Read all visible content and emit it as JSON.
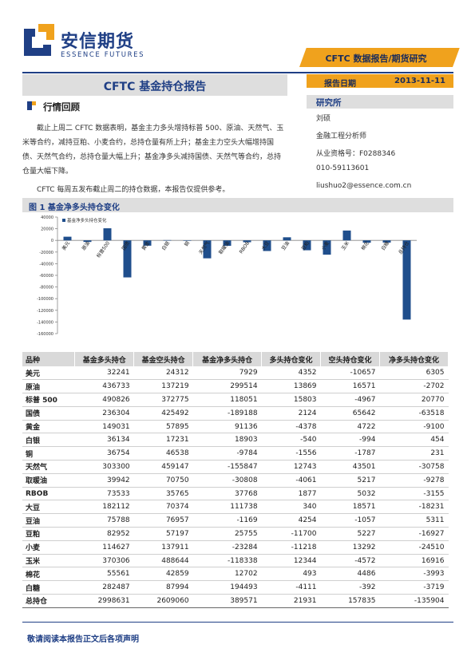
{
  "header": {
    "logo_cn": "安信期货",
    "logo_en": "ESSENCE FUTURES",
    "banner": "CFTC 数据报告/期货研究",
    "title": "CFTC 基金持仓报告",
    "date_label": "报告日期",
    "date_value": "2013-11-11",
    "institute": "研究所"
  },
  "contact": {
    "name": "刘硕",
    "role": "金融工程分析师",
    "license": "从业资格号：F0288346",
    "phone": "010-59113601",
    "email": "liushuo2@essence.com.cn"
  },
  "section": {
    "title": "行情回顾",
    "para1": "截止上周二 CFTC 数据表明，基金主力多头增持标普 500、原油、天然气、玉米等合约，减持豆粕、小麦合约，总持仓量有所上升；基金主力空头大幅增持国债、天然气合约，总持仓量大幅上升；基金净多头减持国债、天然气等合约，总持仓量大幅下降。",
    "para2": "CFTC 每周五发布截止周二的持仓数据，本报告仅提供参考。"
  },
  "figure": {
    "title": "图 1 基金净多头持仓变化"
  },
  "colors": {
    "brand_blue": "#1f3f85",
    "accent_orange": "#f0a21d",
    "bar_color": "#1f4e8c"
  },
  "chart_data": {
    "type": "bar",
    "legend": "基金净多头持仓变化",
    "legend_position": "top-left",
    "categories": [
      "美元",
      "原油",
      "标普500",
      "国债",
      "黄金",
      "白银",
      "铜",
      "天然气",
      "取暖油",
      "RBOB",
      "大豆",
      "豆油",
      "豆粕",
      "小麦",
      "玉米",
      "棉花",
      "白糖",
      "总持仓"
    ],
    "values": [
      6305,
      -2702,
      20770,
      -63518,
      -9100,
      454,
      231,
      -30758,
      -9278,
      -3155,
      -18231,
      5311,
      -16927,
      -24510,
      16916,
      -3993,
      -3719,
      -135904
    ],
    "ylim": [
      -160000,
      40000
    ],
    "yticks": [
      40000,
      20000,
      0,
      -20000,
      -40000,
      -60000,
      -80000,
      -100000,
      -120000,
      -140000,
      -160000
    ],
    "grid": false
  },
  "table": {
    "headers": [
      "品种",
      "基金多头持仓",
      "基金空头持仓",
      "基金净多头持仓",
      "多头持仓变化",
      "空头持仓变化",
      "净多头持仓变化"
    ],
    "rows": [
      [
        "美元",
        "32241",
        "24312",
        "7929",
        "4352",
        "-10657",
        "6305"
      ],
      [
        "原油",
        "436733",
        "137219",
        "299514",
        "13869",
        "16571",
        "-2702"
      ],
      [
        "标普 500",
        "490826",
        "372775",
        "118051",
        "15803",
        "-4967",
        "20770"
      ],
      [
        "国债",
        "236304",
        "425492",
        "-189188",
        "2124",
        "65642",
        "-63518"
      ],
      [
        "黄金",
        "149031",
        "57895",
        "91136",
        "-4378",
        "4722",
        "-9100"
      ],
      [
        "白银",
        "36134",
        "17231",
        "18903",
        "-540",
        "-994",
        "454"
      ],
      [
        "铜",
        "36754",
        "46538",
        "-9784",
        "-1556",
        "-1787",
        "231"
      ],
      [
        "天然气",
        "303300",
        "459147",
        "-155847",
        "12743",
        "43501",
        "-30758"
      ],
      [
        "取暖油",
        "39942",
        "70750",
        "-30808",
        "-4061",
        "5217",
        "-9278"
      ],
      [
        "RBOB",
        "73533",
        "35765",
        "37768",
        "1877",
        "5032",
        "-3155"
      ],
      [
        "大豆",
        "182112",
        "70374",
        "111738",
        "340",
        "18571",
        "-18231"
      ],
      [
        "豆油",
        "75788",
        "76957",
        "-1169",
        "4254",
        "-1057",
        "5311"
      ],
      [
        "豆粕",
        "82952",
        "57197",
        "25755",
        "-11700",
        "5227",
        "-16927"
      ],
      [
        "小麦",
        "114627",
        "137911",
        "-23284",
        "-11218",
        "13292",
        "-24510"
      ],
      [
        "玉米",
        "370306",
        "488644",
        "-118338",
        "12344",
        "-4572",
        "16916"
      ],
      [
        "棉花",
        "55561",
        "42859",
        "12702",
        "493",
        "4486",
        "-3993"
      ],
      [
        "白糖",
        "282487",
        "87994",
        "194493",
        "-4111",
        "-392",
        "-3719"
      ],
      [
        "总持仓",
        "2998631",
        "2609060",
        "389571",
        "21931",
        "157835",
        "-135904"
      ]
    ]
  },
  "footer": {
    "text": "敬请阅读本报告正文后各项声明"
  }
}
